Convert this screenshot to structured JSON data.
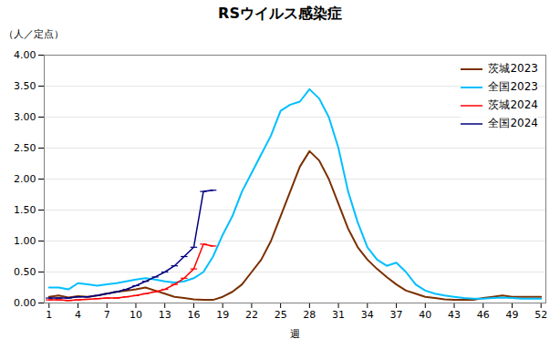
{
  "chart_data": {
    "type": "line",
    "title": "RSウイルス感染症",
    "xlabel": "週",
    "ylabel": "（人／定点）",
    "x": [
      1,
      2,
      3,
      4,
      5,
      6,
      7,
      8,
      9,
      10,
      11,
      12,
      13,
      14,
      15,
      16,
      17,
      18,
      19,
      20,
      21,
      22,
      23,
      24,
      25,
      26,
      27,
      28,
      29,
      30,
      31,
      32,
      33,
      34,
      35,
      36,
      37,
      38,
      39,
      40,
      41,
      42,
      43,
      44,
      45,
      46,
      47,
      48,
      49,
      50,
      51,
      52
    ],
    "series": [
      {
        "name": "茨城2023",
        "color": "#7B3000",
        "values": [
          0.1,
          0.12,
          0.09,
          0.11,
          0.1,
          0.12,
          0.15,
          0.18,
          0.2,
          0.22,
          0.25,
          0.2,
          0.15,
          0.1,
          0.08,
          0.06,
          0.05,
          0.05,
          0.1,
          0.18,
          0.3,
          0.5,
          0.7,
          1.0,
          1.4,
          1.8,
          2.2,
          2.45,
          2.3,
          2.0,
          1.6,
          1.2,
          0.9,
          0.7,
          0.55,
          0.42,
          0.3,
          0.2,
          0.15,
          0.1,
          0.08,
          0.06,
          0.05,
          0.05,
          0.05,
          0.08,
          0.1,
          0.12,
          0.1,
          0.1,
          0.1,
          0.1
        ]
      },
      {
        "name": "全国2023",
        "color": "#00BFFF",
        "values": [
          0.25,
          0.25,
          0.22,
          0.32,
          0.3,
          0.28,
          0.3,
          0.32,
          0.35,
          0.38,
          0.4,
          0.38,
          0.35,
          0.33,
          0.35,
          0.4,
          0.5,
          0.75,
          1.1,
          1.4,
          1.8,
          2.1,
          2.4,
          2.7,
          3.1,
          3.2,
          3.25,
          3.45,
          3.3,
          3.0,
          2.5,
          1.8,
          1.3,
          0.9,
          0.7,
          0.6,
          0.65,
          0.5,
          0.3,
          0.2,
          0.15,
          0.12,
          0.1,
          0.08,
          0.07,
          0.07,
          0.08,
          0.09,
          0.08,
          0.07,
          0.07,
          0.07
        ]
      },
      {
        "name": "茨城2024",
        "color": "#FF0000",
        "marker": "hline",
        "values": [
          0.05,
          0.05,
          0.04,
          0.05,
          0.06,
          0.07,
          0.08,
          0.08,
          0.1,
          0.12,
          0.15,
          0.18,
          0.22,
          0.3,
          0.4,
          0.55,
          0.95,
          0.92,
          null,
          null,
          null,
          null,
          null,
          null,
          null,
          null,
          null,
          null,
          null,
          null,
          null,
          null,
          null,
          null,
          null,
          null,
          null,
          null,
          null,
          null,
          null,
          null,
          null,
          null,
          null,
          null,
          null,
          null,
          null,
          null,
          null,
          null
        ]
      },
      {
        "name": "全国2024",
        "color": "#000080",
        "marker": "hline",
        "values": [
          0.08,
          0.08,
          0.08,
          0.1,
          0.1,
          0.12,
          0.15,
          0.18,
          0.22,
          0.28,
          0.35,
          0.42,
          0.5,
          0.6,
          0.75,
          0.9,
          1.8,
          1.82,
          null,
          null,
          null,
          null,
          null,
          null,
          null,
          null,
          null,
          null,
          null,
          null,
          null,
          null,
          null,
          null,
          null,
          null,
          null,
          null,
          null,
          null,
          null,
          null,
          null,
          null,
          null,
          null,
          null,
          null,
          null,
          null,
          null,
          null
        ]
      }
    ],
    "xlim": [
      0.5,
      52.5
    ],
    "xticks": [
      1,
      4,
      7,
      10,
      13,
      16,
      19,
      22,
      25,
      28,
      31,
      34,
      37,
      40,
      43,
      46,
      49,
      52
    ],
    "ylim": [
      0.0,
      4.0
    ],
    "yticks": [
      {
        "value": 0.0,
        "label": "0.00"
      },
      {
        "value": 0.5,
        "label": "0.50"
      },
      {
        "value": 1.0,
        "label": "1.00"
      },
      {
        "value": 1.5,
        "label": "1.50"
      },
      {
        "value": 2.0,
        "label": "2.00"
      },
      {
        "value": 2.5,
        "label": "2.50"
      },
      {
        "value": 3.0,
        "label": "3.00"
      },
      {
        "value": 3.5,
        "label": "3.50"
      },
      {
        "value": 4.0,
        "label": "4.00"
      }
    ],
    "grid": true,
    "legend": "upper-right"
  }
}
